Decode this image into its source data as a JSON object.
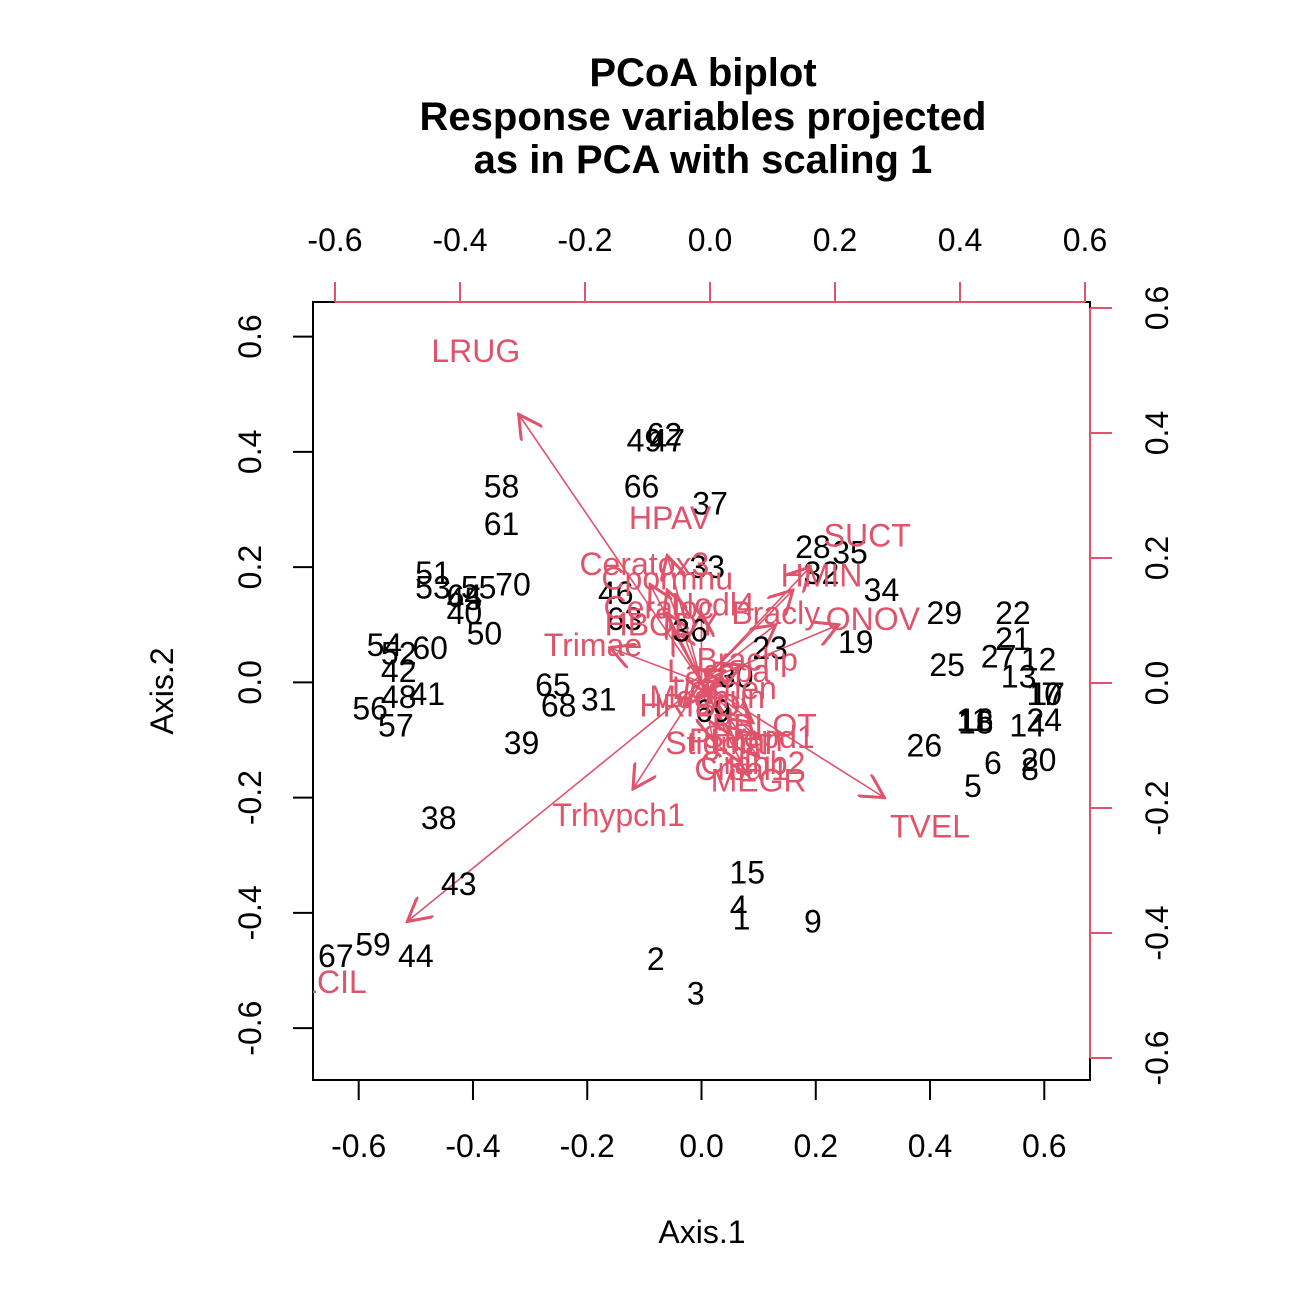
{
  "colors": {
    "sites": "#000000",
    "variables": "#DF536B"
  },
  "chart_data": {
    "type": "scatter",
    "title": [
      "PCoA biplot",
      "Response variables projected",
      "as in PCA with scaling 1"
    ],
    "xlabel": "Axis.1",
    "ylabel": "Axis.2",
    "xlim": [
      -0.68,
      0.68
    ],
    "ylim": [
      -0.69,
      0.66
    ],
    "xticks": [
      "-0.6",
      "-0.4",
      "-0.2",
      "0.0",
      "0.2",
      "0.4",
      "0.6"
    ],
    "yticks": [
      "-0.6",
      "-0.4",
      "-0.2",
      "0.0",
      "0.2",
      "0.4",
      "0.6"
    ],
    "top_xticks": [
      "-0.6",
      "-0.4",
      "-0.2",
      "0.0",
      "0.2",
      "0.4",
      "0.6"
    ],
    "right_yticks": [
      "-0.6",
      "-0.4",
      "-0.2",
      "0.0",
      "0.2",
      "0.4",
      "0.6"
    ],
    "grid": false,
    "sites": [
      {
        "label": "1",
        "x": 0.07,
        "y": -0.41
      },
      {
        "label": "2",
        "x": -0.08,
        "y": -0.48
      },
      {
        "label": "3",
        "x": -0.01,
        "y": -0.54
      },
      {
        "label": "4",
        "x": 0.065,
        "y": -0.39
      },
      {
        "label": "5",
        "x": 0.475,
        "y": -0.18
      },
      {
        "label": "6",
        "x": 0.51,
        "y": -0.14
      },
      {
        "label": "7",
        "x": 0.61,
        "y": -0.02
      },
      {
        "label": "8",
        "x": 0.575,
        "y": -0.15
      },
      {
        "label": "9",
        "x": 0.195,
        "y": -0.415
      },
      {
        "label": "10",
        "x": 0.6,
        "y": -0.02
      },
      {
        "label": "11",
        "x": 0.475,
        "y": -0.065
      },
      {
        "label": "12",
        "x": 0.59,
        "y": 0.04
      },
      {
        "label": "13",
        "x": 0.555,
        "y": 0.01
      },
      {
        "label": "14",
        "x": 0.57,
        "y": -0.075
      },
      {
        "label": "15",
        "x": 0.08,
        "y": -0.33
      },
      {
        "label": "16",
        "x": 0.48,
        "y": -0.065
      },
      {
        "label": "17",
        "x": 0.605,
        "y": -0.02
      },
      {
        "label": "18",
        "x": 0.48,
        "y": -0.07
      },
      {
        "label": "19",
        "x": 0.27,
        "y": 0.07
      },
      {
        "label": "20",
        "x": 0.59,
        "y": -0.135
      },
      {
        "label": "21",
        "x": 0.545,
        "y": 0.075
      },
      {
        "label": "22",
        "x": 0.545,
        "y": 0.12
      },
      {
        "label": "23",
        "x": 0.12,
        "y": 0.06
      },
      {
        "label": "24",
        "x": 0.6,
        "y": -0.065
      },
      {
        "label": "25",
        "x": 0.43,
        "y": 0.03
      },
      {
        "label": "26",
        "x": 0.39,
        "y": -0.11
      },
      {
        "label": "27",
        "x": 0.52,
        "y": 0.045
      },
      {
        "label": "28",
        "x": 0.195,
        "y": 0.235
      },
      {
        "label": "29",
        "x": 0.425,
        "y": 0.12
      },
      {
        "label": "30",
        "x": 0.06,
        "y": 0.01
      },
      {
        "label": "31",
        "x": -0.18,
        "y": -0.03
      },
      {
        "label": "32",
        "x": 0.21,
        "y": 0.19
      },
      {
        "label": "33",
        "x": 0.01,
        "y": 0.2
      },
      {
        "label": "34",
        "x": 0.315,
        "y": 0.16
      },
      {
        "label": "35",
        "x": 0.26,
        "y": 0.225
      },
      {
        "label": "36",
        "x": -0.02,
        "y": 0.09
      },
      {
        "label": "37",
        "x": 0.015,
        "y": 0.31
      },
      {
        "label": "38",
        "x": -0.46,
        "y": -0.235
      },
      {
        "label": "39",
        "x": -0.315,
        "y": -0.105
      },
      {
        "label": "40",
        "x": -0.415,
        "y": 0.12
      },
      {
        "label": "41",
        "x": -0.48,
        "y": -0.02
      },
      {
        "label": "42",
        "x": -0.53,
        "y": 0.02
      },
      {
        "label": "43",
        "x": -0.425,
        "y": -0.35
      },
      {
        "label": "44",
        "x": -0.5,
        "y": -0.475
      },
      {
        "label": "45",
        "x": -0.415,
        "y": 0.145
      },
      {
        "label": "46",
        "x": -0.15,
        "y": 0.155
      },
      {
        "label": "47",
        "x": -0.06,
        "y": 0.42
      },
      {
        "label": "48",
        "x": -0.53,
        "y": -0.025
      },
      {
        "label": "49",
        "x": -0.1,
        "y": 0.42
      },
      {
        "label": "50",
        "x": -0.38,
        "y": 0.085
      },
      {
        "label": "51",
        "x": -0.47,
        "y": 0.19
      },
      {
        "label": "52",
        "x": -0.53,
        "y": 0.05
      },
      {
        "label": "53",
        "x": -0.47,
        "y": 0.165
      },
      {
        "label": "54",
        "x": -0.555,
        "y": 0.065
      },
      {
        "label": "55",
        "x": -0.39,
        "y": 0.165
      },
      {
        "label": "56",
        "x": -0.58,
        "y": -0.045
      },
      {
        "label": "57",
        "x": -0.535,
        "y": -0.075
      },
      {
        "label": "58",
        "x": -0.35,
        "y": 0.34
      },
      {
        "label": "59",
        "x": -0.575,
        "y": -0.455
      },
      {
        "label": "60",
        "x": -0.475,
        "y": 0.06
      },
      {
        "label": "61",
        "x": -0.35,
        "y": 0.275
      },
      {
        "label": "62",
        "x": -0.065,
        "y": 0.43
      },
      {
        "label": "63",
        "x": -0.135,
        "y": 0.11
      },
      {
        "label": "64",
        "x": -0.415,
        "y": 0.15
      },
      {
        "label": "65",
        "x": -0.26,
        "y": -0.005
      },
      {
        "label": "66",
        "x": -0.105,
        "y": 0.34
      },
      {
        "label": "67",
        "x": -0.64,
        "y": -0.475
      },
      {
        "label": "68",
        "x": -0.25,
        "y": -0.04
      },
      {
        "label": "69",
        "x": 0.02,
        "y": -0.05
      },
      {
        "label": "70",
        "x": -0.33,
        "y": 0.17
      }
    ],
    "variables": [
      {
        "label": "LRUG",
        "x": -0.32,
        "y": 0.465,
        "lx": -0.395,
        "ly": 0.575
      },
      {
        "label": "LCIL",
        "x": -0.515,
        "y": -0.415,
        "lx": -0.645,
        "ly": -0.52
      },
      {
        "label": "TVEL",
        "x": 0.32,
        "y": -0.2,
        "lx": 0.4,
        "ly": -0.25
      },
      {
        "label": "Trhypch1",
        "x": -0.12,
        "y": -0.185,
        "lx": -0.145,
        "ly": -0.23
      },
      {
        "label": "SUCT",
        "x": 0.19,
        "y": 0.2,
        "lx": 0.29,
        "ly": 0.255
      },
      {
        "label": "HMIN",
        "x": 0.16,
        "y": 0.16,
        "lx": 0.21,
        "ly": 0.185
      },
      {
        "label": "ONOV",
        "x": 0.24,
        "y": 0.1,
        "lx": 0.3,
        "ly": 0.11
      },
      {
        "label": "HPAV",
        "x": -0.06,
        "y": 0.22,
        "lx": -0.055,
        "ly": 0.285
      },
      {
        "label": "Ceratox3",
        "x": -0.09,
        "y": 0.17,
        "lx": -0.1,
        "ly": 0.205
      },
      {
        "label": "Cpormnu",
        "x": -0.06,
        "y": 0.16,
        "lx": -0.06,
        "ly": 0.18
      },
      {
        "label": "Bracly",
        "x": 0.13,
        "y": 0.1,
        "lx": 0.13,
        "ly": 0.12
      },
      {
        "label": "Trimae",
        "x": -0.16,
        "y": 0.06,
        "lx": -0.19,
        "ly": 0.065
      },
      {
        "label": "Ceraloc",
        "x": -0.06,
        "y": 0.12,
        "lx": -0.075,
        "ly": 0.13
      },
      {
        "label": "Nodl4",
        "x": 0.0,
        "y": 0.12,
        "lx": 0.02,
        "ly": 0.135
      },
      {
        "label": "HBODY",
        "x": -0.05,
        "y": 0.09,
        "lx": -0.07,
        "ly": 0.1
      },
      {
        "label": "Brachp",
        "x": 0.07,
        "y": 0.03,
        "lx": 0.08,
        "ly": 0.04
      },
      {
        "label": "Laccpa",
        "x": 0.04,
        "y": 0.02,
        "lx": 0.03,
        "ly": 0.02
      },
      {
        "label": "Lochen",
        "x": 0.04,
        "y": 0.0,
        "lx": 0.04,
        "ly": -0.01
      },
      {
        "label": "Meghun",
        "x": 0.01,
        "y": -0.02,
        "lx": 0.01,
        "ly": -0.025
      },
      {
        "label": "HRIBO",
        "x": -0.03,
        "y": -0.04,
        "lx": -0.02,
        "ly": -0.04
      },
      {
        "label": "BBLOT",
        "x": 0.09,
        "y": -0.07,
        "lx": 0.11,
        "ly": -0.075
      },
      {
        "label": "Strepd1",
        "x": 0.09,
        "y": -0.09,
        "lx": 0.1,
        "ly": -0.095
      },
      {
        "label": "Stigmal",
        "x": 0.02,
        "y": -0.1,
        "lx": 0.03,
        "ly": -0.105
      },
      {
        "label": "PLYnn",
        "x": 0.05,
        "y": -0.09,
        "lx": 0.06,
        "ly": -0.1
      },
      {
        "label": "Cranb2",
        "x": 0.1,
        "y": -0.13,
        "lx": 0.09,
        "ly": -0.14
      },
      {
        "label": "Crbal1",
        "x": 0.07,
        "y": -0.14,
        "lx": 0.07,
        "ly": -0.15
      },
      {
        "label": "MEGR",
        "x": 0.08,
        "y": -0.16,
        "lx": 0.1,
        "ly": -0.17
      }
    ]
  }
}
